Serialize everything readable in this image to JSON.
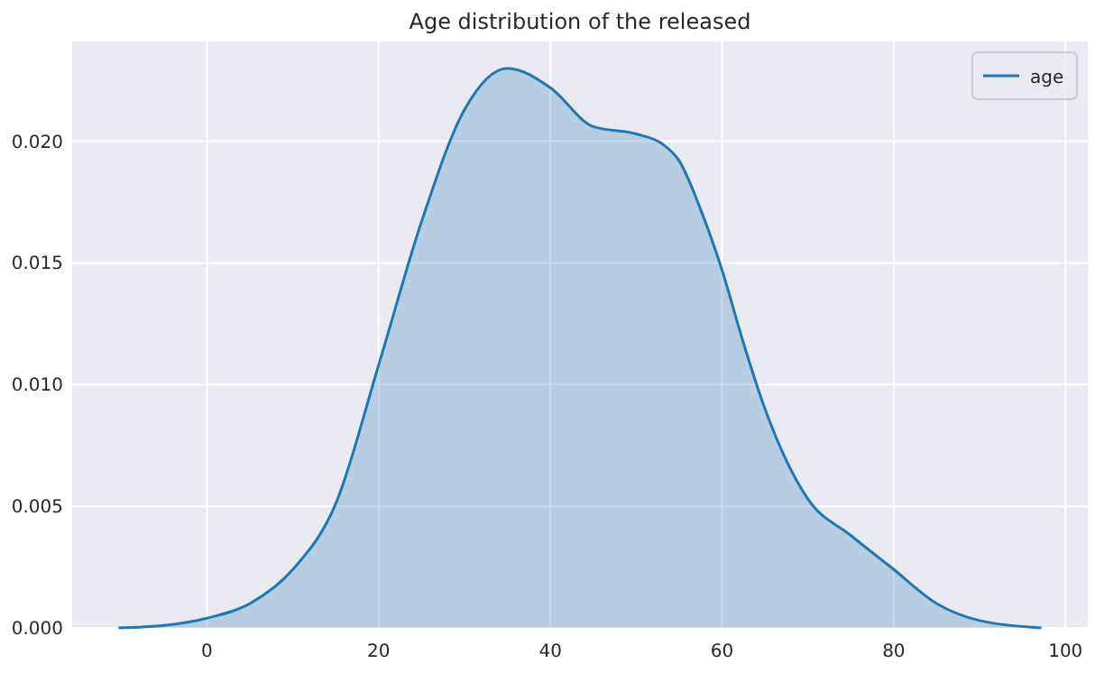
{
  "chart_data": {
    "type": "area",
    "title": "Age distribution of the released",
    "x": [
      -10.3,
      -5,
      0,
      5,
      10,
      15,
      20,
      25,
      30,
      35,
      40,
      45,
      50,
      53,
      55,
      57.5,
      60,
      62.5,
      65,
      70,
      75,
      80,
      85,
      90,
      97.2
    ],
    "series": [
      {
        "name": "age",
        "color": "#1f77b4",
        "values": [
          0,
          0.0001,
          0.0004,
          0.001,
          0.0024,
          0.0051,
          0.0108,
          0.0167,
          0.0213,
          0.023,
          0.0222,
          0.0206,
          0.0203,
          0.0199,
          0.0192,
          0.0172,
          0.0147,
          0.0117,
          0.009,
          0.0053,
          0.0038,
          0.0024,
          0.001,
          0.0003,
          0
        ]
      }
    ],
    "xlim": [
      -15.7,
      102.6
    ],
    "xticks": [
      0,
      20,
      40,
      60,
      80,
      100
    ],
    "ylim": [
      0,
      0.0241
    ],
    "yticks": [
      {
        "value": 0,
        "label": "0.000"
      },
      {
        "value": 0.005,
        "label": "0.005"
      },
      {
        "value": 0.01,
        "label": "0.010"
      },
      {
        "value": 0.015,
        "label": "0.015"
      },
      {
        "value": 0.02,
        "label": "0.020"
      }
    ],
    "grid": true,
    "legend": "top right"
  }
}
